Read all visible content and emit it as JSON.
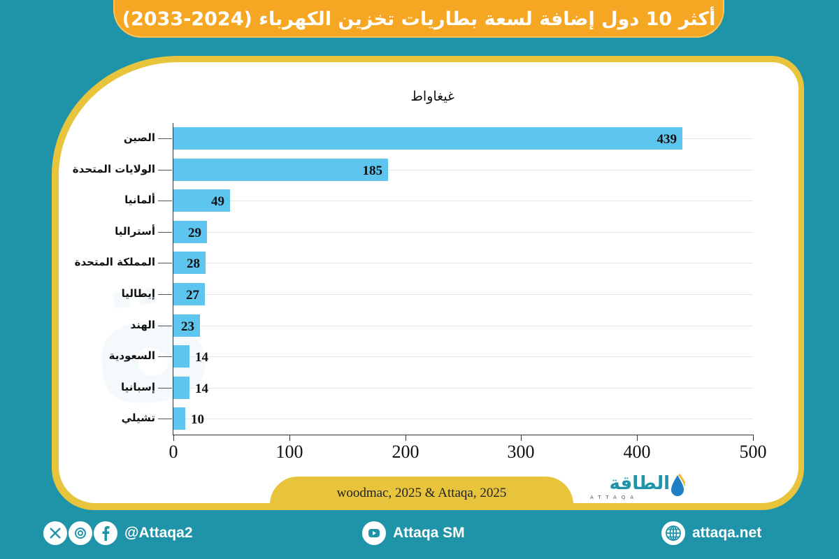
{
  "header": {
    "title": "أكثر 10 دول إضافة لسعة بطاريات تخزين الكهرباء (2024-2033)"
  },
  "chart_data": {
    "type": "bar",
    "orientation": "horizontal",
    "title": "أكثر 10 دول إضافة لسعة بطاريات تخزين الكهرباء (2024-2033)",
    "unit_label": "غيغاواط",
    "xlabel": "",
    "ylabel": "",
    "categories": [
      "الصين",
      "الولايات المتحدة",
      "ألمانيا",
      "أستراليا",
      "المملكة المتحدة",
      "إيطاليا",
      "الهند",
      "السعودية",
      "إسبانيا",
      "تشيلي"
    ],
    "values": [
      439,
      185,
      49,
      29,
      28,
      27,
      23,
      14,
      14,
      10
    ],
    "value_labels": [
      "439",
      "185",
      "49",
      "29",
      "28",
      "27",
      "23",
      "14",
      "14",
      "10"
    ],
    "xlim": [
      0,
      500
    ],
    "xticks": [
      "0",
      "100",
      "200",
      "300",
      "400",
      "500"
    ],
    "grid": true,
    "legend": null,
    "bar_color": "#5ec5ef"
  },
  "source": {
    "text": "woodmac, 2025 & Attaqa, 2025"
  },
  "logo": {
    "arabic": "الطاقة",
    "latin": "ATTAQA"
  },
  "footer": {
    "social_handle": "@Attaqa2",
    "social_icons": [
      "x-icon",
      "instagram-icon",
      "facebook-icon"
    ],
    "youtube_label": "Attaqa SM",
    "website": "attaqa.net"
  },
  "colors": {
    "background": "#1f93a8",
    "banner": "#f5a623",
    "frame": "#e8c43c",
    "bar": "#5ec5ef"
  }
}
